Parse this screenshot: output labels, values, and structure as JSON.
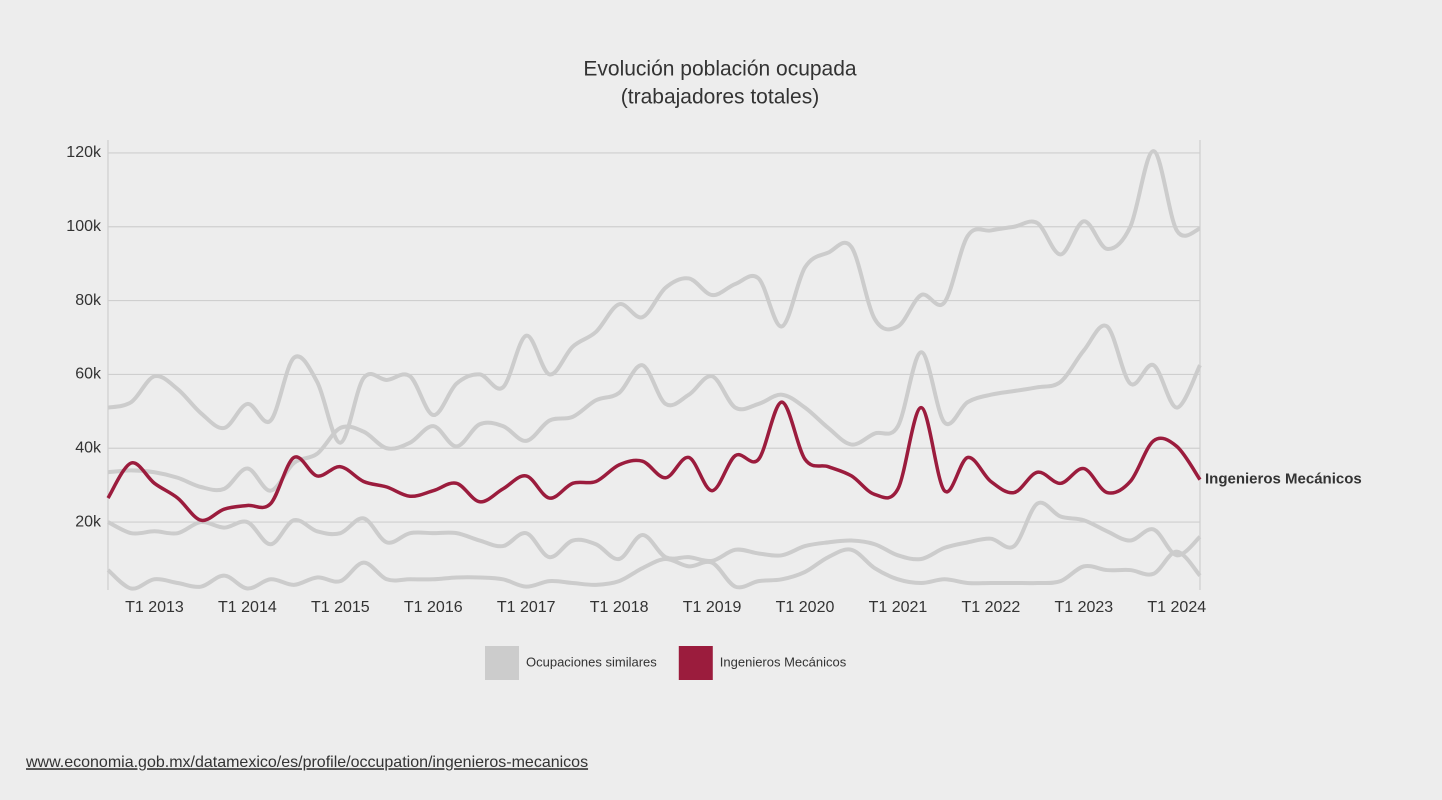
{
  "chart_data": {
    "type": "line",
    "title": "Evolución población ocupada",
    "subtitle": "(trabajadores totales)",
    "categories": [
      null,
      null,
      "T1 2013",
      null,
      null,
      null,
      "T1 2014",
      null,
      null,
      null,
      "T1 2015",
      null,
      null,
      null,
      "T1 2016",
      null,
      null,
      null,
      "T1 2017",
      null,
      null,
      null,
      "T1 2018",
      null,
      null,
      null,
      "T1 2019",
      null,
      null,
      null,
      "T1 2020",
      null,
      null,
      null,
      "T1 2021",
      null,
      null,
      null,
      "T1 2022",
      null,
      null,
      null,
      "T1 2023",
      null,
      null,
      null,
      "T1 2024",
      null
    ],
    "series": [
      {
        "name": "Ocupaciones similares",
        "color": "#cccccc",
        "values": [
          51000,
          52500,
          59500,
          56000,
          49500,
          45500,
          52000,
          47500,
          64500,
          58000,
          41500,
          59000,
          58500,
          59500,
          49000,
          57500,
          60000,
          56500,
          70500,
          60000,
          67500,
          71500,
          79000,
          75500,
          83500,
          86000,
          81500,
          84500,
          86000,
          73000,
          89000,
          93000,
          94500,
          75000,
          73000,
          81500,
          79500,
          97500,
          99000,
          100000,
          101000,
          92500,
          101500,
          94000,
          100000,
          120500,
          99000,
          99500
        ]
      },
      {
        "name": "Ocupaciones similares",
        "color": "#cccccc",
        "values": [
          33500,
          34000,
          33500,
          32000,
          29500,
          29000,
          34500,
          28500,
          36000,
          38500,
          45500,
          44500,
          40000,
          41500,
          46000,
          40500,
          46500,
          46000,
          42000,
          47500,
          48500,
          53000,
          55000,
          62500,
          52000,
          54500,
          59500,
          51000,
          52000,
          54500,
          51000,
          45500,
          41000,
          44000,
          46000,
          66000,
          47000,
          52500,
          54500,
          55500,
          56500,
          58000,
          66500,
          73000,
          57500,
          62500,
          51000,
          62500
        ]
      },
      {
        "name": "Ocupaciones similares",
        "color": "#cccccc",
        "values": [
          20000,
          17000,
          17500,
          17000,
          20000,
          18500,
          20000,
          14000,
          20500,
          17500,
          17000,
          21000,
          14500,
          17000,
          17000,
          17000,
          15000,
          13500,
          17000,
          10500,
          15000,
          14000,
          10000,
          16500,
          10500,
          10500,
          9500,
          12500,
          11500,
          11000,
          13500,
          14500,
          15000,
          14000,
          11000,
          10000,
          13000,
          14500,
          15500,
          13500,
          25000,
          21500,
          20500,
          17500,
          15000,
          18000,
          11000,
          16000
        ]
      },
      {
        "name": "Ocupaciones similares",
        "color": "#cccccc",
        "values": [
          7000,
          2000,
          4500,
          3500,
          2500,
          5500,
          2000,
          4500,
          3000,
          5000,
          4000,
          9000,
          4500,
          4500,
          4500,
          5000,
          5000,
          4500,
          2500,
          4000,
          3500,
          3000,
          4000,
          7500,
          10000,
          8000,
          9000,
          2500,
          4000,
          4500,
          6500,
          10500,
          12500,
          7500,
          4500,
          3500,
          4500,
          3500,
          3500,
          3500,
          3500,
          4000,
          8000,
          7000,
          7000,
          6000,
          12000,
          5500
        ]
      },
      {
        "name": "Ingenieros Mecánicos",
        "color": "#9b1c3d",
        "values": [
          26500,
          36000,
          30500,
          26500,
          20500,
          23500,
          24500,
          25000,
          37500,
          32500,
          35000,
          31000,
          29500,
          27000,
          28500,
          30500,
          25500,
          29000,
          32500,
          26500,
          30500,
          31000,
          35500,
          36500,
          32000,
          37500,
          28500,
          38000,
          37000,
          52500,
          37000,
          35000,
          32500,
          27500,
          29000,
          51000,
          28500,
          37500,
          31000,
          28000,
          33500,
          30500,
          34500,
          28000,
          31000,
          42000,
          40500,
          31500
        ]
      }
    ],
    "ylim": [
      1600,
      123500
    ],
    "yticks": [
      {
        "value": 20000,
        "label": "20k"
      },
      {
        "value": 40000,
        "label": "40k"
      },
      {
        "value": 60000,
        "label": "60k"
      },
      {
        "value": 80000,
        "label": "80k"
      },
      {
        "value": 100000,
        "label": "100k"
      },
      {
        "value": 120000,
        "label": "120k"
      }
    ],
    "grid": true,
    "source": "www.economia.gob.mx/datamexico/es/profile/occupation/ingenieros-mecanicos"
  }
}
